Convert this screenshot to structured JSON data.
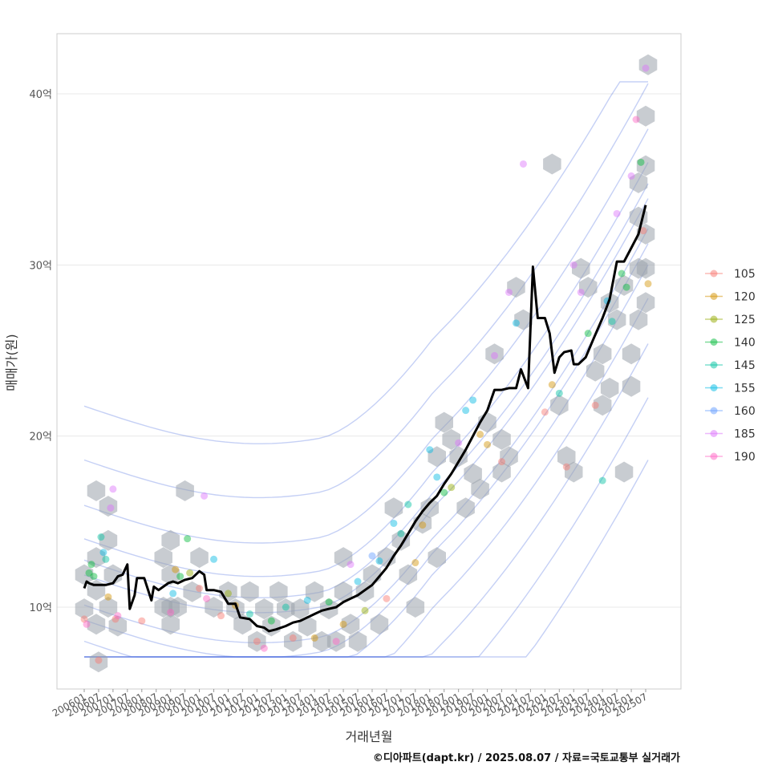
{
  "chart_data": {
    "type": "line",
    "xlabel": "거래년월",
    "ylabel": "매매가(원)",
    "caption": "©디아파트(dapt.kr) / 2025.08.07 / 자료=국토교통부 실거래가",
    "x_start": "200601",
    "x_end": "202508",
    "x_ticks": [
      "200601",
      "200607",
      "200701",
      "200707",
      "200801",
      "200807",
      "200901",
      "200907",
      "201001",
      "201007",
      "201101",
      "201107",
      "201201",
      "201207",
      "201301",
      "201307",
      "201401",
      "201407",
      "201501",
      "201507",
      "201601",
      "201607",
      "201701",
      "201707",
      "201801",
      "201807",
      "201901",
      "201907",
      "202001",
      "202007",
      "202101",
      "202107",
      "202201",
      "202207",
      "202301",
      "202307",
      "202401",
      "202407",
      "202501",
      "202507"
    ],
    "y_ticks": [
      {
        "value": 10,
        "label": "10억"
      },
      {
        "value": 20,
        "label": "20억"
      },
      {
        "value": 30,
        "label": "30억"
      },
      {
        "value": 40,
        "label": "40억"
      }
    ],
    "ylim": [
      5.2,
      43.5
    ],
    "grid": true,
    "legend_position": "right",
    "legend": [
      {
        "label": "105",
        "color": "#F8766D"
      },
      {
        "label": "120",
        "color": "#D39200"
      },
      {
        "label": "125",
        "color": "#93AA00"
      },
      {
        "label": "140",
        "color": "#00BA38"
      },
      {
        "label": "145",
        "color": "#00C19F"
      },
      {
        "label": "155",
        "color": "#00B9E3"
      },
      {
        "label": "160",
        "color": "#619CFF"
      },
      {
        "label": "185",
        "color": "#DB72FB"
      },
      {
        "label": "190",
        "color": "#FF61C3"
      }
    ],
    "trend_line": [
      [
        "200601",
        11.1
      ],
      [
        "200602",
        11.5
      ],
      [
        "200603",
        11.4
      ],
      [
        "200605",
        11.3
      ],
      [
        "200610",
        11.3
      ],
      [
        "200701",
        11.4
      ],
      [
        "200703",
        11.8
      ],
      [
        "200705",
        11.9
      ],
      [
        "200707",
        12.5
      ],
      [
        "200708",
        9.9
      ],
      [
        "200710",
        10.7
      ],
      [
        "200711",
        11.7
      ],
      [
        "200802",
        11.7
      ],
      [
        "200805",
        10.4
      ],
      [
        "200806",
        11.2
      ],
      [
        "200808",
        11.0
      ],
      [
        "200810",
        11.2
      ],
      [
        "200812",
        11.4
      ],
      [
        "200902",
        11.5
      ],
      [
        "200904",
        11.4
      ],
      [
        "200907",
        11.6
      ],
      [
        "200910",
        11.7
      ],
      [
        "201001",
        12.1
      ],
      [
        "201003",
        11.9
      ],
      [
        "201004",
        11.0
      ],
      [
        "201007",
        11.0
      ],
      [
        "201010",
        10.9
      ],
      [
        "201101",
        10.2
      ],
      [
        "201104",
        10.2
      ],
      [
        "201106",
        9.4
      ],
      [
        "201110",
        9.3
      ],
      [
        "201201",
        8.9
      ],
      [
        "201204",
        8.8
      ],
      [
        "201206",
        8.6
      ],
      [
        "201209",
        8.7
      ],
      [
        "201301",
        8.9
      ],
      [
        "201304",
        9.1
      ],
      [
        "201307",
        9.2
      ],
      [
        "201310",
        9.4
      ],
      [
        "201401",
        9.6
      ],
      [
        "201404",
        9.8
      ],
      [
        "201407",
        9.9
      ],
      [
        "201410",
        10.0
      ],
      [
        "201501",
        10.3
      ],
      [
        "201504",
        10.5
      ],
      [
        "201507",
        10.7
      ],
      [
        "201510",
        11.0
      ],
      [
        "201601",
        11.3
      ],
      [
        "201604",
        11.8
      ],
      [
        "201607",
        12.3
      ],
      [
        "201610",
        13.0
      ],
      [
        "201701",
        13.6
      ],
      [
        "201704",
        14.3
      ],
      [
        "201707",
        15.0
      ],
      [
        "201710",
        15.6
      ],
      [
        "201801",
        16.1
      ],
      [
        "201804",
        16.5
      ],
      [
        "201807",
        17.2
      ],
      [
        "201810",
        17.8
      ],
      [
        "201901",
        18.5
      ],
      [
        "201904",
        19.2
      ],
      [
        "201907",
        20.0
      ],
      [
        "201910",
        20.8
      ],
      [
        "202001",
        21.5
      ],
      [
        "202004",
        22.7
      ],
      [
        "202007",
        22.7
      ],
      [
        "202010",
        22.8
      ],
      [
        "202101",
        22.8
      ],
      [
        "202103",
        23.9
      ],
      [
        "202106",
        22.8
      ],
      [
        "202108",
        29.9
      ],
      [
        "202110",
        26.9
      ],
      [
        "202201",
        26.9
      ],
      [
        "202203",
        26.0
      ],
      [
        "202205",
        23.7
      ],
      [
        "202207",
        24.6
      ],
      [
        "202209",
        24.9
      ],
      [
        "202212",
        25.0
      ],
      [
        "202301",
        24.2
      ],
      [
        "202303",
        24.2
      ],
      [
        "202306",
        24.6
      ],
      [
        "202309",
        25.6
      ],
      [
        "202401",
        26.9
      ],
      [
        "202404",
        28.0
      ],
      [
        "202407",
        30.2
      ],
      [
        "202410",
        30.2
      ],
      [
        "202501",
        31.0
      ],
      [
        "202504",
        31.8
      ],
      [
        "202507",
        33.5
      ]
    ],
    "points": [
      [
        "200601",
        9.3,
        "105"
      ],
      [
        "200602",
        9.0,
        "190"
      ],
      [
        "200603",
        12.0,
        "140"
      ],
      [
        "200604",
        12.5,
        "140"
      ],
      [
        "200605",
        11.8,
        "140"
      ],
      [
        "200607",
        6.9,
        "105"
      ],
      [
        "200608",
        14.1,
        "145"
      ],
      [
        "200609",
        13.2,
        "155"
      ],
      [
        "200610",
        12.8,
        "145"
      ],
      [
        "200611",
        10.6,
        "120"
      ],
      [
        "200612",
        15.8,
        "185"
      ],
      [
        "200701",
        16.9,
        "185"
      ],
      [
        "200702",
        9.3,
        "105"
      ],
      [
        "200703",
        9.5,
        "190"
      ],
      [
        "200801",
        9.2,
        "105"
      ],
      [
        "200901",
        9.7,
        "190"
      ],
      [
        "200902",
        10.8,
        "155"
      ],
      [
        "200903",
        12.2,
        "120"
      ],
      [
        "200905",
        11.8,
        "140"
      ],
      [
        "200908",
        14.0,
        "140"
      ],
      [
        "200909",
        12.0,
        "125"
      ],
      [
        "201001",
        11.1,
        "105"
      ],
      [
        "201003",
        16.5,
        "185"
      ],
      [
        "201004",
        10.5,
        "190"
      ],
      [
        "201007",
        12.8,
        "155"
      ],
      [
        "201010",
        9.5,
        "105"
      ],
      [
        "201101",
        10.8,
        "125"
      ],
      [
        "201104",
        10.1,
        "120"
      ],
      [
        "201110",
        9.6,
        "145"
      ],
      [
        "201201",
        8.0,
        "105"
      ],
      [
        "201204",
        7.6,
        "190"
      ],
      [
        "201207",
        9.2,
        "140"
      ],
      [
        "201301",
        10.0,
        "145"
      ],
      [
        "201304",
        8.2,
        "105"
      ],
      [
        "201310",
        10.4,
        "155"
      ],
      [
        "201401",
        8.2,
        "120"
      ],
      [
        "201407",
        10.3,
        "140"
      ],
      [
        "201410",
        8.0,
        "190"
      ],
      [
        "201501",
        9.0,
        "120"
      ],
      [
        "201504",
        12.5,
        "185"
      ],
      [
        "201507",
        11.5,
        "155"
      ],
      [
        "201510",
        9.8,
        "125"
      ],
      [
        "201601",
        13.0,
        "160"
      ],
      [
        "201604",
        12.7,
        "155"
      ],
      [
        "201607",
        10.5,
        "105"
      ],
      [
        "201610",
        14.9,
        "155"
      ],
      [
        "201701",
        14.3,
        "145"
      ],
      [
        "201704",
        16.0,
        "145"
      ],
      [
        "201707",
        12.6,
        "120"
      ],
      [
        "201710",
        14.8,
        "120"
      ],
      [
        "201801",
        19.2,
        "155"
      ],
      [
        "201804",
        17.6,
        "155"
      ],
      [
        "201807",
        16.7,
        "140"
      ],
      [
        "201810",
        17.0,
        "125"
      ],
      [
        "201901",
        19.6,
        "185"
      ],
      [
        "201904",
        21.5,
        "155"
      ],
      [
        "201907",
        22.1,
        "155"
      ],
      [
        "201910",
        20.1,
        "120"
      ],
      [
        "202001",
        19.5,
        "120"
      ],
      [
        "202004",
        24.7,
        "185"
      ],
      [
        "202007",
        18.5,
        "105"
      ],
      [
        "202010",
        28.4,
        "185"
      ],
      [
        "202101",
        26.6,
        "155"
      ],
      [
        "202104",
        35.9,
        "185"
      ],
      [
        "202201",
        21.4,
        "105"
      ],
      [
        "202204",
        23.0,
        "120"
      ],
      [
        "202207",
        22.5,
        "145"
      ],
      [
        "202210",
        18.2,
        "105"
      ],
      [
        "202301",
        30.0,
        "185"
      ],
      [
        "202304",
        28.4,
        "185"
      ],
      [
        "202307",
        26.0,
        "140"
      ],
      [
        "202310",
        21.8,
        "105"
      ],
      [
        "202401",
        17.4,
        "145"
      ],
      [
        "202403",
        27.9,
        "155"
      ],
      [
        "202405",
        26.7,
        "145"
      ],
      [
        "202407",
        33.0,
        "185"
      ],
      [
        "202409",
        29.5,
        "140"
      ],
      [
        "202411",
        28.7,
        "140"
      ],
      [
        "202501",
        35.2,
        "185"
      ],
      [
        "202503",
        38.5,
        "190"
      ],
      [
        "202505",
        36.0,
        "140"
      ],
      [
        "202506",
        32.0,
        "105"
      ],
      [
        "202507",
        41.5,
        "185"
      ],
      [
        "202508",
        28.9,
        "120"
      ]
    ],
    "hexes": [
      [
        "200601",
        11.9
      ],
      [
        "200601",
        9.9
      ],
      [
        "200606",
        16.8
      ],
      [
        "200606",
        12.9
      ],
      [
        "200606",
        11.0
      ],
      [
        "200606",
        9.0
      ],
      [
        "200607",
        6.8
      ],
      [
        "200611",
        15.9
      ],
      [
        "200611",
        13.9
      ],
      [
        "200611",
        10.0
      ],
      [
        "200701",
        11.9
      ],
      [
        "200703",
        8.9
      ],
      [
        "200810",
        12.9
      ],
      [
        "200810",
        10.0
      ],
      [
        "200901",
        13.9
      ],
      [
        "200901",
        11.9
      ],
      [
        "200901",
        10.0
      ],
      [
        "200901",
        9.0
      ],
      [
        "200904",
        10.0
      ],
      [
        "200907",
        16.8
      ],
      [
        "200910",
        10.9
      ],
      [
        "201001",
        12.9
      ],
      [
        "201007",
        10.0
      ],
      [
        "201101",
        10.9
      ],
      [
        "201104",
        9.9
      ],
      [
        "201107",
        9.0
      ],
      [
        "201110",
        10.9
      ],
      [
        "201201",
        8.0
      ],
      [
        "201204",
        9.9
      ],
      [
        "201207",
        8.9
      ],
      [
        "201210",
        10.9
      ],
      [
        "201301",
        9.9
      ],
      [
        "201304",
        8.0
      ],
      [
        "201307",
        9.9
      ],
      [
        "201310",
        8.9
      ],
      [
        "201401",
        10.9
      ],
      [
        "201404",
        8.0
      ],
      [
        "201407",
        9.9
      ],
      [
        "201410",
        8.0
      ],
      [
        "201501",
        12.9
      ],
      [
        "201501",
        10.9
      ],
      [
        "201504",
        9.0
      ],
      [
        "201507",
        8.0
      ],
      [
        "201510",
        10.9
      ],
      [
        "201601",
        11.9
      ],
      [
        "201604",
        9.0
      ],
      [
        "201607",
        12.9
      ],
      [
        "201610",
        15.8
      ],
      [
        "201701",
        13.9
      ],
      [
        "201704",
        11.9
      ],
      [
        "201707",
        10.0
      ],
      [
        "201710",
        14.9
      ],
      [
        "201801",
        15.8
      ],
      [
        "201804",
        18.8
      ],
      [
        "201804",
        12.9
      ],
      [
        "201807",
        20.8
      ],
      [
        "201810",
        19.8
      ],
      [
        "201901",
        18.8
      ],
      [
        "201904",
        15.8
      ],
      [
        "201907",
        17.8
      ],
      [
        "201910",
        16.9
      ],
      [
        "202001",
        20.8
      ],
      [
        "202004",
        24.8
      ],
      [
        "202007",
        19.8
      ],
      [
        "202007",
        17.9
      ],
      [
        "202010",
        18.8
      ],
      [
        "202101",
        28.7
      ],
      [
        "202104",
        26.8
      ],
      [
        "202204",
        35.9
      ],
      [
        "202207",
        21.8
      ],
      [
        "202210",
        18.8
      ],
      [
        "202301",
        17.9
      ],
      [
        "202304",
        29.8
      ],
      [
        "202307",
        28.7
      ],
      [
        "202310",
        23.8
      ],
      [
        "202401",
        21.8
      ],
      [
        "202401",
        24.8
      ],
      [
        "202404",
        27.8
      ],
      [
        "202404",
        22.8
      ],
      [
        "202407",
        26.8
      ],
      [
        "202410",
        28.8
      ],
      [
        "202410",
        17.9
      ],
      [
        "202501",
        24.8
      ],
      [
        "202501",
        22.9
      ],
      [
        "202504",
        26.8
      ],
      [
        "202504",
        29.8
      ],
      [
        "202504",
        32.8
      ],
      [
        "202504",
        34.8
      ],
      [
        "202507",
        27.8
      ],
      [
        "202507",
        29.8
      ],
      [
        "202507",
        31.8
      ],
      [
        "202507",
        35.8
      ],
      [
        "202507",
        38.7
      ],
      [
        "202508",
        41.7
      ]
    ]
  }
}
